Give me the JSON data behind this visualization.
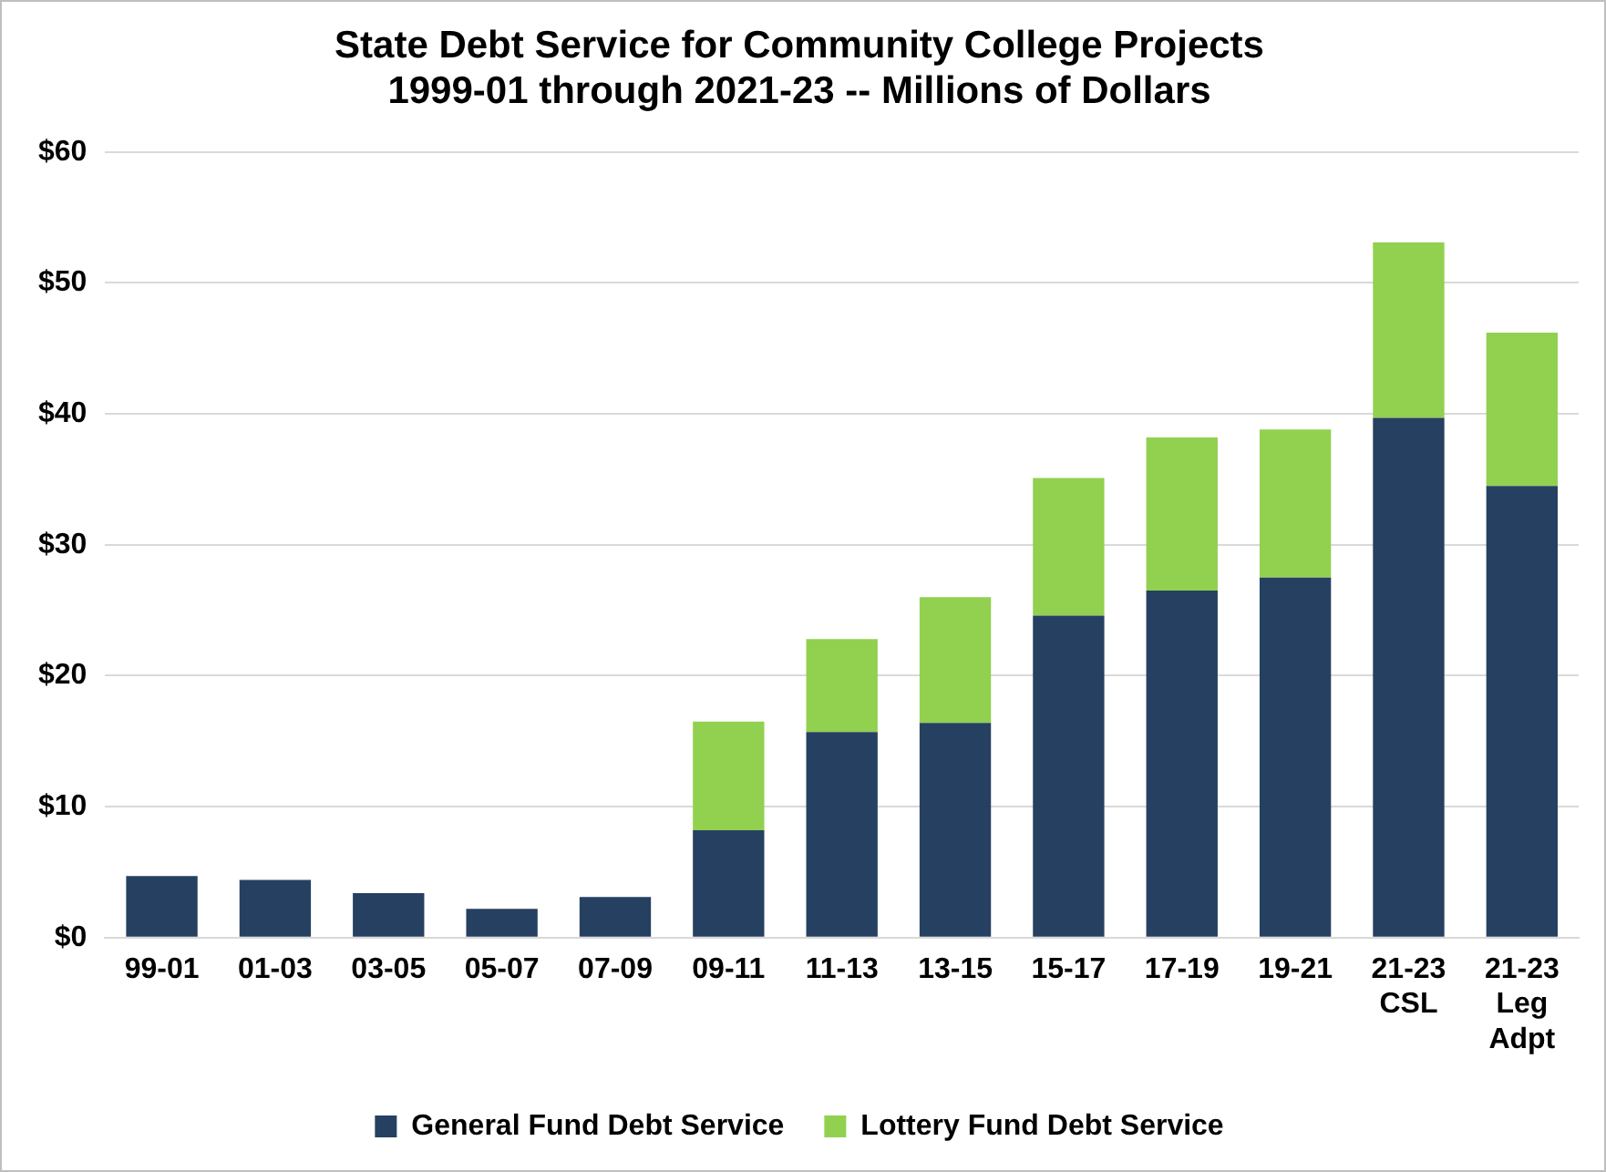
{
  "chart_data": {
    "type": "bar",
    "title": "State Debt Service for Community College Projects\n1999-01 through 2021-23 -- Millions of Dollars",
    "categories": [
      "99-01",
      "01-03",
      "03-05",
      "05-07",
      "07-09",
      "09-11",
      "11-13",
      "13-15",
      "15-17",
      "17-19",
      "19-21",
      "21-23\nCSL",
      "21-23\nLeg\nAdpt"
    ],
    "series": [
      {
        "name": "General Fund Debt Service",
        "color": "#264061",
        "values": [
          4.7,
          4.4,
          3.4,
          2.2,
          3.1,
          8.2,
          15.7,
          16.4,
          24.6,
          26.5,
          27.5,
          39.7,
          34.5
        ]
      },
      {
        "name": "Lottery Fund Debt Service",
        "color": "#92d050",
        "values": [
          0,
          0,
          0,
          0,
          0,
          8.3,
          7.1,
          9.6,
          10.5,
          11.7,
          11.3,
          13.4,
          11.7
        ]
      }
    ],
    "stacked": true,
    "ylim": [
      0,
      60
    ],
    "yticks": [
      {
        "value": 0,
        "label": "$0"
      },
      {
        "value": 10,
        "label": "$10"
      },
      {
        "value": 20,
        "label": "$20"
      },
      {
        "value": 30,
        "label": "$30"
      },
      {
        "value": 40,
        "label": "$40"
      },
      {
        "value": 50,
        "label": "$50"
      },
      {
        "value": 60,
        "label": "$60"
      }
    ],
    "grid": "y",
    "legend": "bottom"
  }
}
